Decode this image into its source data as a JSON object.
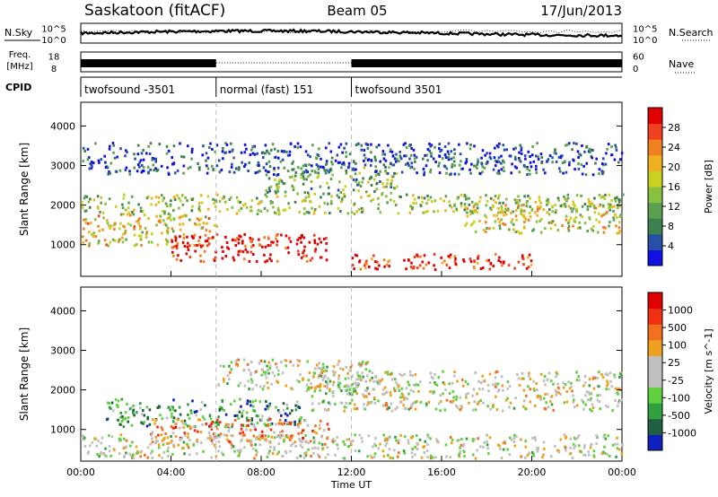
{
  "header": {
    "station": "Saskatoon (fitACF)",
    "beam": "Beam 05",
    "date": "17/Jun/2013"
  },
  "chart_data": [
    {
      "type": "line",
      "panel": "noise",
      "left_label": "N.Sky",
      "left_ticks": [
        "10^5",
        "10^0"
      ],
      "right_ticks": [
        "10^5",
        "10^0"
      ],
      "legend_label": "N.Search",
      "series": [
        {
          "name": "N.Sky",
          "style": "solid"
        },
        {
          "name": "N.Search",
          "style": "dotted"
        }
      ]
    },
    {
      "type": "line",
      "panel": "frequency",
      "left_label_1": "Freq.",
      "left_label_2": "[MHz]",
      "left_ticks": [
        "18",
        "8"
      ],
      "right_ticks": [
        "60",
        "0"
      ],
      "legend_label": "Nave",
      "series": [
        {
          "name": "Freq.",
          "style": "solid"
        },
        {
          "name": "Nave",
          "style": "dotted"
        }
      ]
    },
    {
      "type": "table",
      "panel": "cpid",
      "label": "CPID",
      "segments": [
        {
          "start": 0,
          "end": 6,
          "name": "twofsound -3501"
        },
        {
          "start": 6,
          "end": 12,
          "name": "normal (fast) 151"
        },
        {
          "start": 12,
          "end": 24,
          "name": "twofsound 3501"
        }
      ]
    },
    {
      "type": "heatmap",
      "panel": "power",
      "ylabel": "Slant Range [km]",
      "yticks": [
        1000,
        2000,
        3000,
        4000
      ],
      "ylim": [
        200,
        4600
      ],
      "xlim": [
        0,
        24
      ],
      "colorbar": {
        "label": "Power [dB]",
        "ticks": [
          "28",
          "24",
          "20",
          "16",
          "12",
          "8",
          "4"
        ],
        "colors": [
          "#1010e0",
          "#2850a8",
          "#3e8050",
          "#5aa050",
          "#88c040",
          "#c8d020",
          "#f0b020",
          "#f08020",
          "#f04020",
          "#e00000"
        ]
      },
      "regions": [
        {
          "t0": 0.0,
          "t1": 6.0,
          "r0": 1000,
          "r1": 1800,
          "level": 0.6
        },
        {
          "t0": 4.0,
          "t1": 11.0,
          "r0": 600,
          "r1": 1300,
          "level": 0.95
        },
        {
          "t0": 0.0,
          "t1": 24.0,
          "r0": 1800,
          "r1": 2300,
          "level": 0.45
        },
        {
          "t0": 12.0,
          "t1": 20.0,
          "r0": 400,
          "r1": 800,
          "level": 0.9
        },
        {
          "t0": 8.0,
          "t1": 14.0,
          "r0": 2300,
          "r1": 3000,
          "level": 0.4
        },
        {
          "t0": 17.0,
          "t1": 24.0,
          "r0": 1300,
          "r1": 2100,
          "level": 0.55
        },
        {
          "t0": 0.0,
          "t1": 24.0,
          "r0": 2800,
          "r1": 3600,
          "level": 0.15
        }
      ]
    },
    {
      "type": "heatmap",
      "panel": "velocity",
      "ylabel": "Slant Range [km]",
      "yticks": [
        1000,
        2000,
        3000,
        4000
      ],
      "ylim": [
        200,
        4600
      ],
      "xlim": [
        0,
        24
      ],
      "xticks": [
        "00:00",
        "04:00",
        "08:00",
        "12:00",
        "16:00",
        "20:00",
        "00:00"
      ],
      "xlabel": "Time UT",
      "colorbar": {
        "label": "Velocity [m s^-1]",
        "ticks": [
          "1000",
          "500",
          "100",
          "25",
          "-25",
          "-100",
          "-500",
          "-1000"
        ],
        "colors": [
          "#1020c0",
          "#206040",
          "#30a040",
          "#60d040",
          "#c0c0c0",
          "#c0c0c0",
          "#f0a020",
          "#f07020",
          "#f03010",
          "#e00000"
        ]
      },
      "regions": [
        {
          "t0": 1.0,
          "t1": 10.0,
          "r0": 1100,
          "r1": 1800,
          "level": 0.25
        },
        {
          "t0": 3.0,
          "t1": 11.0,
          "r0": 700,
          "r1": 1300,
          "level": 0.7
        },
        {
          "t0": 0.0,
          "t1": 24.0,
          "r0": 300,
          "r1": 900,
          "level": 0.5
        },
        {
          "t0": 10.0,
          "t1": 24.0,
          "r0": 1500,
          "r1": 2500,
          "level": 0.5
        },
        {
          "t0": 6.0,
          "t1": 13.0,
          "r0": 2000,
          "r1": 2800,
          "level": 0.5
        }
      ]
    }
  ]
}
